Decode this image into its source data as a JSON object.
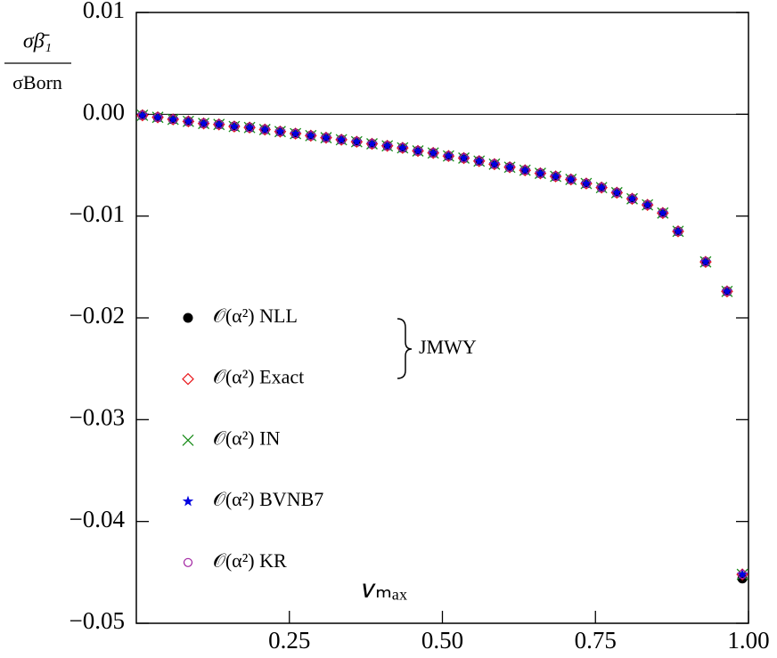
{
  "chart_data": {
    "type": "scatter",
    "ylabel": {
      "numerator": "σβ̄₁",
      "denominator": "σBorn"
    },
    "xlabel": "𝑣ₘₐₓ",
    "annotation": "JMWY",
    "legend": "lower-left",
    "hline": 0,
    "xlim": [
      0,
      1
    ],
    "ylim": [
      -0.05,
      0.01
    ],
    "xticks": [
      0.25,
      {
        "value": 0.5,
        "label": "0.50"
      },
      0.75,
      {
        "value": 1,
        "label": "1.00"
      }
    ],
    "yticks": [
      {
        "value": 0.01,
        "label": "0.01"
      },
      {
        "value": 0,
        "label": "0.00"
      },
      {
        "value": -0.01,
        "label": "−0.01"
      },
      {
        "value": -0.02,
        "label": "−0.02"
      },
      {
        "value": -0.03,
        "label": "−0.03"
      },
      {
        "value": -0.04,
        "label": "−0.04"
      },
      {
        "value": -0.05,
        "label": "−0.05"
      }
    ],
    "x": [
      0.01,
      0.035,
      0.06,
      0.085,
      0.11,
      0.135,
      0.16,
      0.185,
      0.21,
      0.235,
      0.26,
      0.285,
      0.31,
      0.335,
      0.36,
      0.385,
      0.41,
      0.435,
      0.46,
      0.485,
      0.51,
      0.535,
      0.56,
      0.585,
      0.61,
      0.635,
      0.66,
      0.685,
      0.71,
      0.735,
      0.76,
      0.785,
      0.81,
      0.835,
      0.86,
      0.885,
      0.93,
      0.965,
      0.99
    ],
    "series": [
      {
        "name": "𝒪(α²) NLL",
        "color": "#000000",
        "marker": "filled-circle",
        "values": [
          -0.0001,
          -0.0003,
          -0.0005,
          -0.0007,
          -0.0009,
          -0.001,
          -0.0012,
          -0.0013,
          -0.0015,
          -0.0017,
          -0.0019,
          -0.0021,
          -0.0023,
          -0.0025,
          -0.0027,
          -0.0029,
          -0.0031,
          -0.0033,
          -0.0036,
          -0.0038,
          -0.0041,
          -0.0043,
          -0.0046,
          -0.0049,
          -0.0052,
          -0.0055,
          -0.0058,
          -0.0061,
          -0.0064,
          -0.0068,
          -0.0072,
          -0.0077,
          -0.0083,
          -0.0089,
          -0.0097,
          -0.0115,
          -0.0145,
          -0.0174,
          -0.0456
        ]
      },
      {
        "name": "𝒪(α²) Exact",
        "color": "#e8161a",
        "marker": "diamond",
        "values": [
          -0.0001,
          -0.0003,
          -0.0005,
          -0.0007,
          -0.0009,
          -0.001,
          -0.0012,
          -0.0013,
          -0.0015,
          -0.0017,
          -0.0019,
          -0.0021,
          -0.0023,
          -0.0025,
          -0.0027,
          -0.0029,
          -0.0031,
          -0.0033,
          -0.0036,
          -0.0038,
          -0.0041,
          -0.0043,
          -0.0046,
          -0.0049,
          -0.0052,
          -0.0055,
          -0.0058,
          -0.0061,
          -0.0064,
          -0.0068,
          -0.0072,
          -0.0077,
          -0.0083,
          -0.0089,
          -0.0097,
          -0.0115,
          -0.0145,
          -0.0174,
          -0.0452
        ]
      },
      {
        "name": "𝒪(α²) IN",
        "color": "#1a8c1a",
        "marker": "x",
        "values": [
          -0.0001,
          -0.0003,
          -0.0005,
          -0.0007,
          -0.0009,
          -0.001,
          -0.0012,
          -0.0013,
          -0.0015,
          -0.0017,
          -0.0019,
          -0.0021,
          -0.0023,
          -0.0025,
          -0.0027,
          -0.0029,
          -0.0031,
          -0.0033,
          -0.0036,
          -0.0038,
          -0.0041,
          -0.0043,
          -0.0046,
          -0.0049,
          -0.0052,
          -0.0055,
          -0.0058,
          -0.0061,
          -0.0064,
          -0.0068,
          -0.0072,
          -0.0077,
          -0.0083,
          -0.0089,
          -0.0097,
          -0.0115,
          -0.0145,
          -0.0174,
          -0.0452
        ]
      },
      {
        "name": "𝒪(α²) BVNB7",
        "color": "#0000e0",
        "marker": "star",
        "values": [
          -0.0001,
          -0.0003,
          -0.0005,
          -0.0007,
          -0.0009,
          -0.001,
          -0.0012,
          -0.0013,
          -0.0015,
          -0.0017,
          -0.0019,
          -0.0021,
          -0.0023,
          -0.0025,
          -0.0027,
          -0.0029,
          -0.0031,
          -0.0033,
          -0.0036,
          -0.0038,
          -0.0041,
          -0.0043,
          -0.0046,
          -0.0049,
          -0.0052,
          -0.0055,
          -0.0058,
          -0.0061,
          -0.0064,
          -0.0068,
          -0.0072,
          -0.0077,
          -0.0083,
          -0.0089,
          -0.0097,
          -0.0115,
          -0.0145,
          -0.0174,
          -0.0452
        ]
      },
      {
        "name": "𝒪(α²) KR",
        "color": "#a020a0",
        "marker": "circle",
        "values": [
          -0.0001,
          -0.0003,
          -0.0005,
          -0.0007,
          -0.0009,
          -0.001,
          -0.0012,
          -0.0013,
          -0.0015,
          -0.0017,
          -0.0019,
          -0.0021,
          -0.0023,
          -0.0025,
          -0.0027,
          -0.0029,
          -0.0031,
          -0.0033,
          -0.0036,
          -0.0038,
          -0.0041,
          -0.0043,
          -0.0046,
          -0.0049,
          -0.0052,
          -0.0055,
          -0.0058,
          -0.0061,
          -0.0064,
          -0.0068,
          -0.0072,
          -0.0077,
          -0.0083,
          -0.0089,
          -0.0097,
          -0.0115,
          -0.0145,
          -0.0174,
          -0.0452
        ]
      }
    ]
  }
}
